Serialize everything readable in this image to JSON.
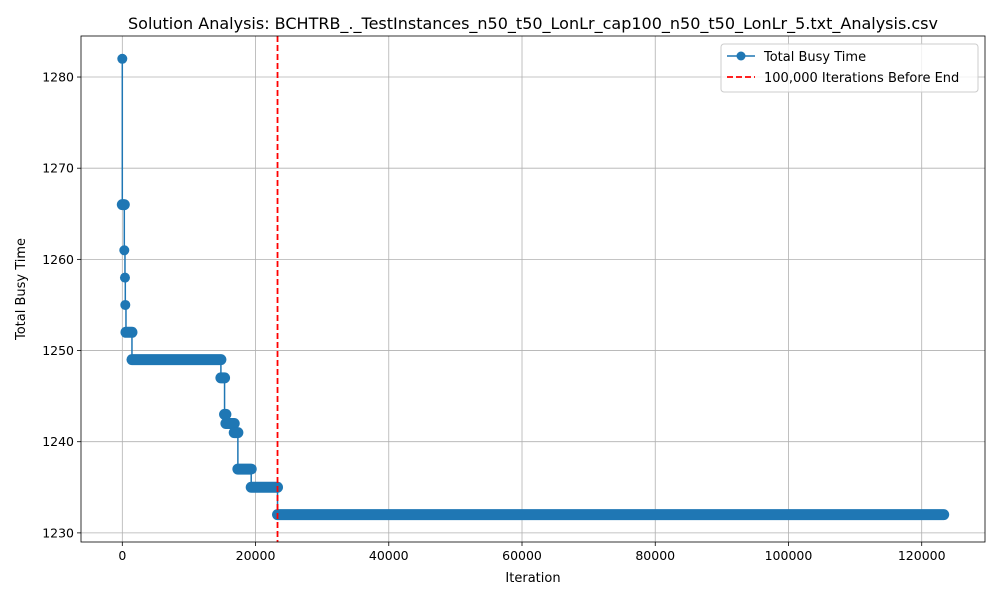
{
  "chart_data": {
    "type": "line",
    "title": "Solution Analysis: BCHTRB_._TestInstances_n50_t50_LonLr_cap100_n50_t50_LonLr_5.txt_Analysis.csv",
    "xlabel": "Iteration",
    "ylabel": "Total Busy Time",
    "xlim": [
      -6200,
      129500
    ],
    "ylim": [
      1229,
      1284.5
    ],
    "xticks": [
      0,
      20000,
      40000,
      60000,
      80000,
      100000,
      120000
    ],
    "yticks": [
      1230,
      1240,
      1250,
      1260,
      1270,
      1280
    ],
    "grid": true,
    "legend_position": "top-right",
    "series": [
      {
        "name": "Total Busy Time",
        "color": "#1f77b4",
        "marker": "circle",
        "step": true,
        "points": [
          [
            0,
            1282
          ],
          [
            0,
            1266
          ],
          [
            300,
            1266
          ],
          [
            300,
            1261
          ],
          [
            400,
            1261
          ],
          [
            400,
            1258
          ],
          [
            450,
            1258
          ],
          [
            450,
            1255
          ],
          [
            550,
            1255
          ],
          [
            550,
            1252
          ],
          [
            1450,
            1252
          ],
          [
            1450,
            1249
          ],
          [
            14800,
            1249
          ],
          [
            14800,
            1247
          ],
          [
            15350,
            1247
          ],
          [
            15350,
            1243
          ],
          [
            15550,
            1243
          ],
          [
            15550,
            1242
          ],
          [
            16800,
            1242
          ],
          [
            16800,
            1241
          ],
          [
            17350,
            1241
          ],
          [
            17350,
            1237
          ],
          [
            19350,
            1237
          ],
          [
            19350,
            1235
          ],
          [
            23300,
            1235
          ],
          [
            23300,
            1232
          ],
          [
            123300,
            1232
          ]
        ],
        "markers": [
          {
            "y": 1282,
            "x_from": 0,
            "x_to": 0
          },
          {
            "y": 1266,
            "x_from": 0,
            "x_to": 300
          },
          {
            "y": 1261,
            "x_from": 300,
            "x_to": 400
          },
          {
            "y": 1258,
            "x_from": 400,
            "x_to": 450
          },
          {
            "y": 1255,
            "x_from": 450,
            "x_to": 550
          },
          {
            "y": 1252,
            "x_from": 550,
            "x_to": 1450
          },
          {
            "y": 1249,
            "x_from": 1450,
            "x_to": 14800
          },
          {
            "y": 1247,
            "x_from": 14800,
            "x_to": 15350
          },
          {
            "y": 1243,
            "x_from": 15350,
            "x_to": 15550
          },
          {
            "y": 1242,
            "x_from": 15550,
            "x_to": 16800
          },
          {
            "y": 1241,
            "x_from": 16800,
            "x_to": 17350
          },
          {
            "y": 1237,
            "x_from": 17350,
            "x_to": 19350
          },
          {
            "y": 1235,
            "x_from": 19350,
            "x_to": 23300
          },
          {
            "y": 1232,
            "x_from": 23300,
            "x_to": 123300
          }
        ]
      }
    ],
    "reference_line": {
      "name": "100,000 Iterations Before End",
      "x": 23300,
      "color": "#ff0000",
      "style": "dashed"
    }
  }
}
